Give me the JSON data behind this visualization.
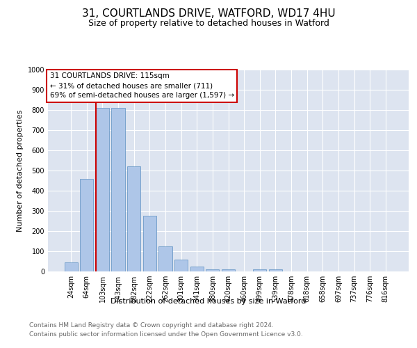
{
  "title_line1": "31, COURTLANDS DRIVE, WATFORD, WD17 4HU",
  "title_line2": "Size of property relative to detached houses in Watford",
  "xlabel": "Distribution of detached houses by size in Watford",
  "ylabel": "Number of detached properties",
  "annotation_line1": "31 COURTLANDS DRIVE: 115sqm",
  "annotation_line2": "← 31% of detached houses are smaller (711)",
  "annotation_line3": "69% of semi-detached houses are larger (1,597) →",
  "footnote1": "Contains HM Land Registry data © Crown copyright and database right 2024.",
  "footnote2": "Contains public sector information licensed under the Open Government Licence v3.0.",
  "categories": [
    "24sqm",
    "64sqm",
    "103sqm",
    "143sqm",
    "182sqm",
    "222sqm",
    "262sqm",
    "301sqm",
    "341sqm",
    "380sqm",
    "420sqm",
    "460sqm",
    "499sqm",
    "539sqm",
    "578sqm",
    "618sqm",
    "658sqm",
    "697sqm",
    "737sqm",
    "776sqm",
    "816sqm"
  ],
  "values": [
    46,
    460,
    810,
    810,
    520,
    275,
    125,
    60,
    25,
    12,
    12,
    0,
    10,
    10,
    0,
    0,
    0,
    0,
    0,
    0,
    0
  ],
  "bar_color": "#aec6e8",
  "bar_edge_color": "#5a8fc0",
  "vline_color": "#cc0000",
  "annotation_box_color": "#cc0000",
  "background_color": "#dde4f0",
  "ylim": [
    0,
    1000
  ],
  "yticks": [
    0,
    100,
    200,
    300,
    400,
    500,
    600,
    700,
    800,
    900,
    1000
  ],
  "title_fontsize": 11,
  "subtitle_fontsize": 9,
  "axis_label_fontsize": 8,
  "tick_fontsize": 7,
  "annotation_fontsize": 7.5,
  "footnote_fontsize": 6.5
}
